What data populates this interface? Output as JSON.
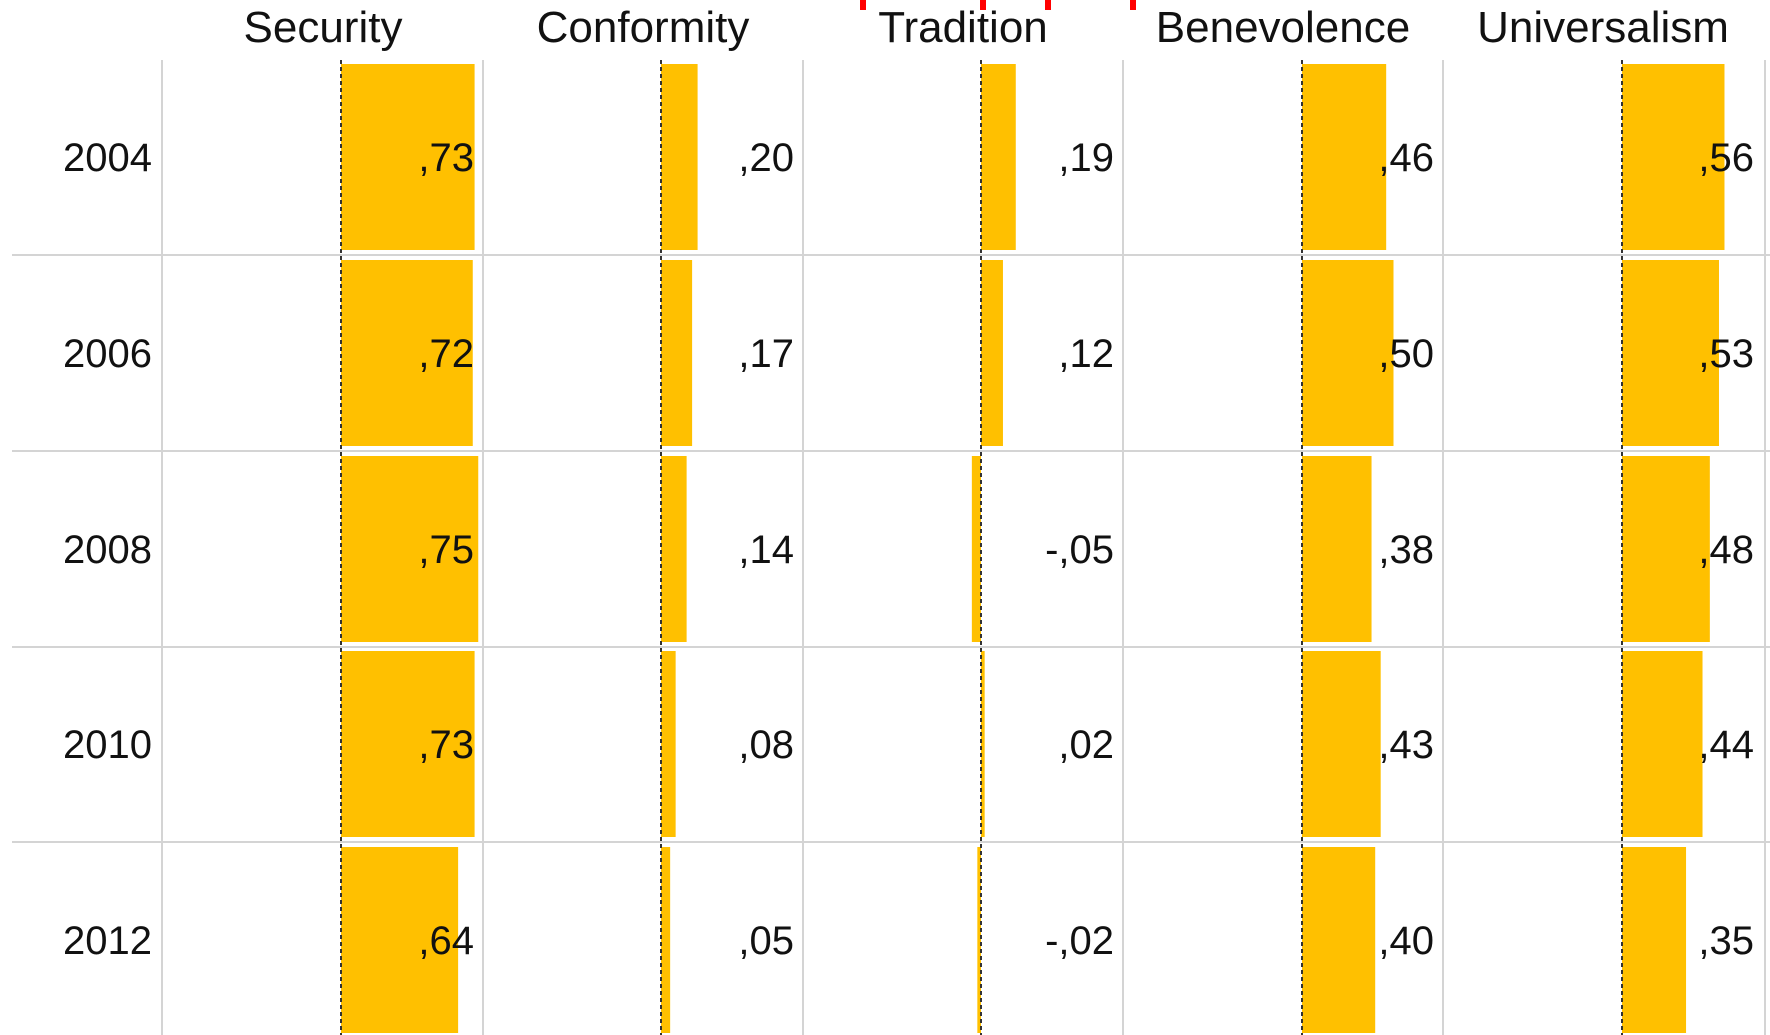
{
  "chart_data": {
    "type": "bar",
    "orientation": "horizontal-small-multiples",
    "title": "",
    "columns": [
      "Security",
      "Conformity",
      "Tradition",
      "Benevolence",
      "Universalism"
    ],
    "rows": [
      "2004",
      "2006",
      "2008",
      "2010",
      "2012"
    ],
    "values": [
      [
        0.73,
        0.2,
        0.19,
        0.46,
        0.56
      ],
      [
        0.72,
        0.17,
        0.12,
        0.5,
        0.53
      ],
      [
        0.75,
        0.14,
        -0.05,
        0.38,
        0.48
      ],
      [
        0.73,
        0.08,
        0.02,
        0.43,
        0.44
      ],
      [
        0.64,
        0.05,
        -0.02,
        0.4,
        0.35
      ]
    ],
    "value_labels": [
      [
        ",73",
        ",20",
        ",19",
        ",46",
        ",56"
      ],
      [
        ",72",
        ",17",
        ",12",
        ",50",
        ",53"
      ],
      [
        ",75",
        ",14",
        "-,05",
        ",38",
        ",48"
      ],
      [
        ",73",
        ",08",
        ",02",
        ",43",
        ",44"
      ],
      [
        ",64",
        ",05",
        "-,02",
        ",40",
        ",35"
      ]
    ],
    "bar_color": "#FFC000",
    "zero_line": "dashed",
    "grid": true,
    "grid_color": "#d4d4d4",
    "accent_color": "#ff0000"
  }
}
